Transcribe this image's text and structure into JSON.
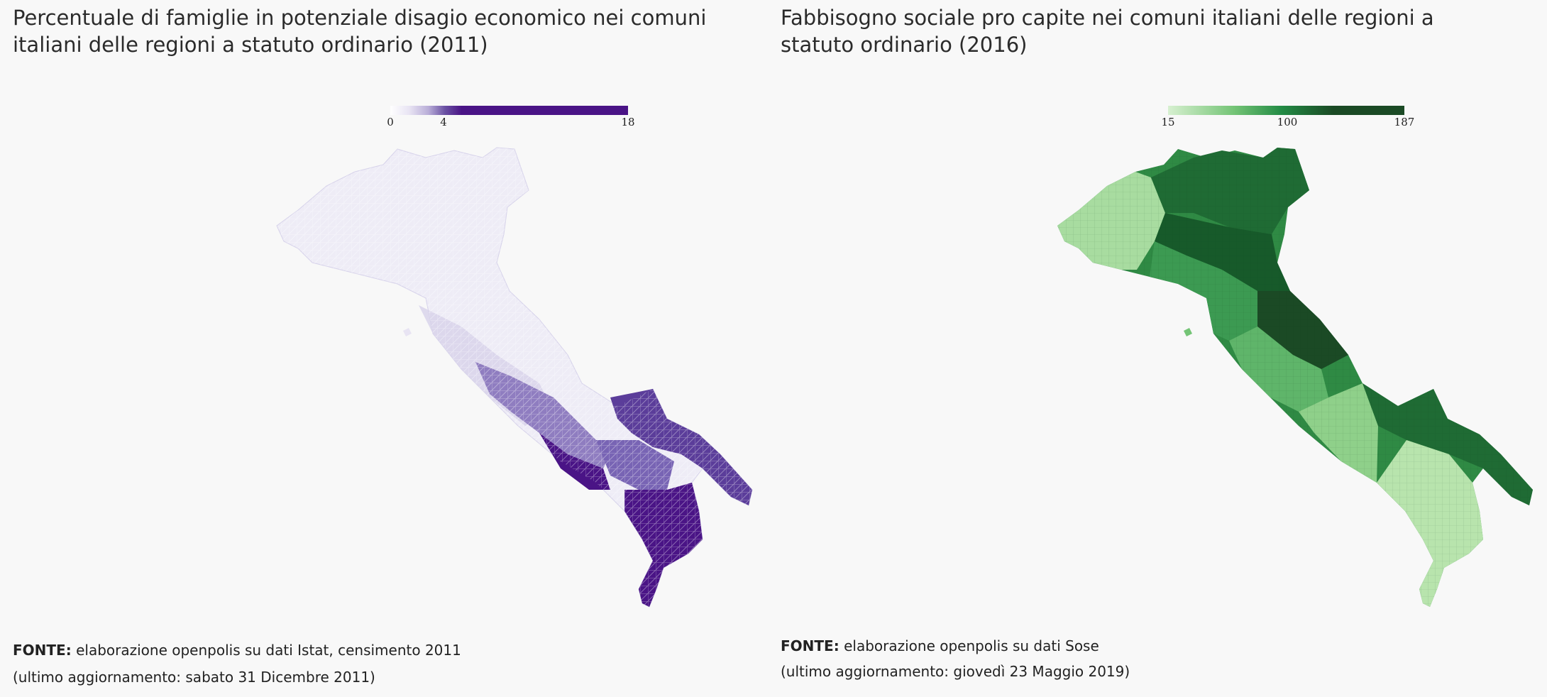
{
  "left_panel": {
    "title": "Percentuale di famiglie in potenziale disagio economico nei comuni italiani delle regioni a statuto ordinario (2011)",
    "legend": {
      "ticks": [
        "0",
        "4",
        "18"
      ],
      "color_low": "#f2f0f7",
      "color_mid": "#6a51a3",
      "color_high": "#4a1486"
    },
    "source_label": "FONTE:",
    "source_text": "elaborazione openpolis su dati Istat, censimento 2011",
    "updated": "(ultimo aggiornamento: sabato 31 Dicembre 2011)"
  },
  "right_panel": {
    "title": "Fabbisogno sociale pro capite nei comuni italiani delle regioni a statuto ordinario (2016)",
    "legend": {
      "ticks": [
        "15",
        "100",
        "187"
      ],
      "color_low": "#c7e9c0",
      "color_mid": "#238b45",
      "color_high": "#1b4a25"
    },
    "source_label": "FONTE:",
    "source_text": "elaborazione openpolis su dati Sose",
    "updated": "(ultimo aggiornamento: giovedì 23 Maggio 2019)"
  }
}
